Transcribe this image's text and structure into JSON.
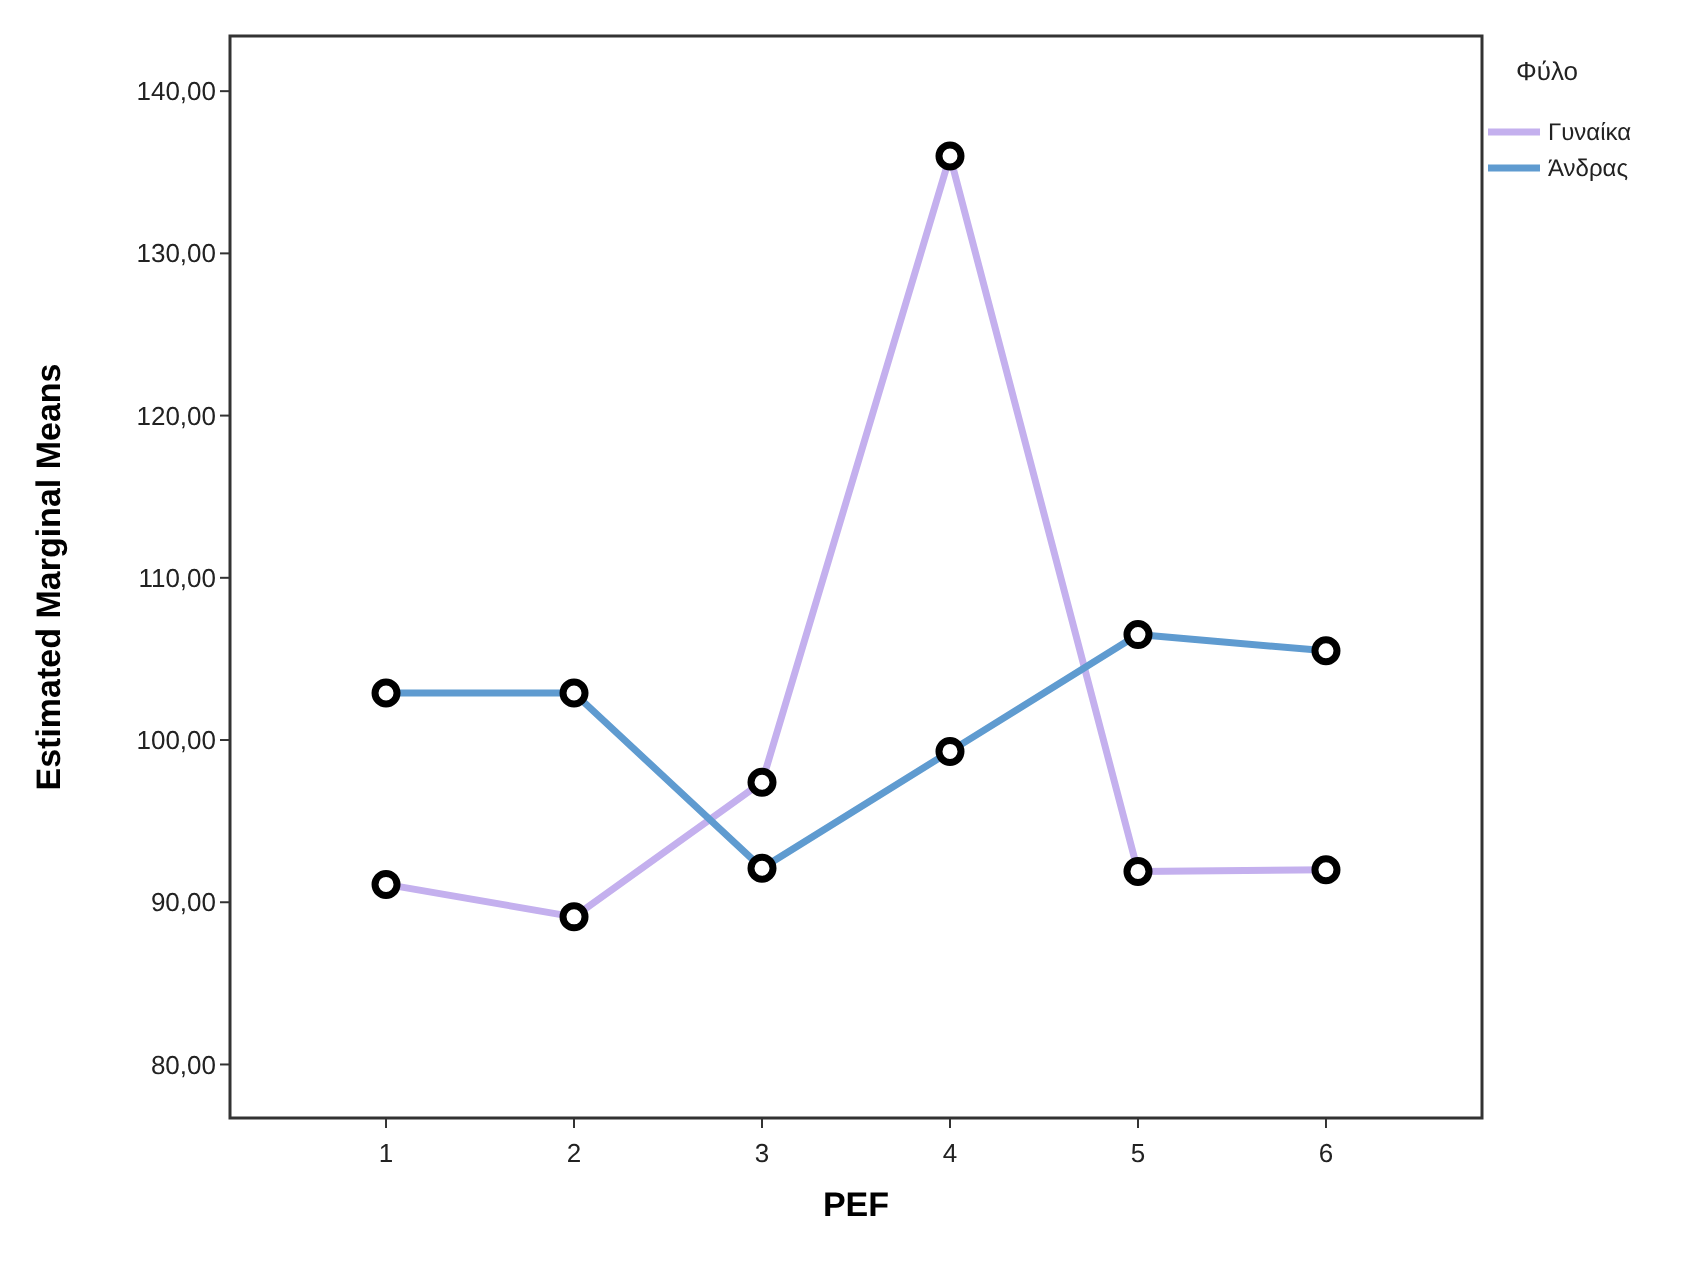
{
  "chart_data": {
    "type": "line",
    "xlabel": "PEF",
    "ylabel": "Estimated Marginal Means",
    "legend_title": "Φύλο",
    "legend": "right",
    "marker": "circle",
    "line_style": "solid",
    "x": [
      1,
      2,
      3,
      4,
      5,
      6
    ],
    "xlim": [
      0.17,
      6.83
    ],
    "xticks": [
      1,
      2,
      3,
      4,
      5,
      6
    ],
    "ylim": [
      76.7,
      143.4
    ],
    "yticks": [
      {
        "value": 80,
        "label": "80,00"
      },
      {
        "value": 90,
        "label": "90,00"
      },
      {
        "value": 100,
        "label": "100,00"
      },
      {
        "value": 110,
        "label": "110,00"
      },
      {
        "value": 120,
        "label": "120,00"
      },
      {
        "value": 130,
        "label": "130,00"
      },
      {
        "value": 140,
        "label": "140,00"
      }
    ],
    "series": [
      {
        "name": "Γυναίκα",
        "color": "#c4b0ee",
        "values": [
          91.1,
          89.1,
          97.4,
          136.0,
          91.9,
          92.0
        ]
      },
      {
        "name": "Άνδρας",
        "color": "#5f9bd0",
        "values": [
          102.9,
          102.9,
          92.1,
          99.3,
          106.5,
          105.5
        ]
      }
    ]
  }
}
